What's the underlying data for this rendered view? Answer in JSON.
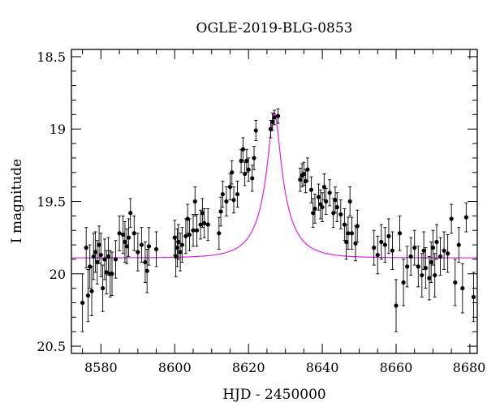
{
  "chart_data": {
    "type": "scatter",
    "title": "OGLE-2019-BLG-0853",
    "xlabel": "HJD - 2450000",
    "ylabel": "I magnitude",
    "xlim": [
      8572,
      8682
    ],
    "ylim": [
      20.55,
      18.45
    ],
    "y_inverted": true,
    "x_ticks": [
      8580,
      8600,
      8620,
      8640,
      8660,
      8680
    ],
    "y_ticks": [
      18.5,
      19,
      19.5,
      20,
      20.5
    ],
    "x_tick_labels": [
      "8580",
      "8600",
      "8620",
      "8640",
      "8660",
      "8680"
    ],
    "y_tick_labels": [
      "18.5",
      "19",
      "19.5",
      "20",
      "20.5"
    ],
    "colors": {
      "points": "#000000",
      "model": "#e020e0",
      "axes": "#000000"
    },
    "model": {
      "name": "",
      "kind": "point-lens model curve",
      "parameters": {
        "t0": 8627.0,
        "u0": 0.18,
        "tE": 8.0,
        "baseline_mag": 19.89,
        "fs": 0.33
      }
    },
    "points": [
      [
        8575.0,
        20.2,
        0.2
      ],
      [
        8576.0,
        19.82,
        0.14
      ],
      [
        8576.5,
        20.15,
        0.18
      ],
      [
        8577.0,
        19.95,
        0.15
      ],
      [
        8577.5,
        20.12,
        0.17
      ],
      [
        8578.0,
        19.88,
        0.16
      ],
      [
        8578.5,
        19.85,
        0.14
      ],
      [
        8579.0,
        19.92,
        0.15
      ],
      [
        8579.5,
        19.8,
        0.13
      ],
      [
        8580.0,
        19.87,
        0.15
      ],
      [
        8580.5,
        20.1,
        0.16
      ],
      [
        8581.0,
        19.9,
        0.14
      ],
      [
        8581.5,
        19.99,
        0.15
      ],
      [
        8582.0,
        19.88,
        0.13
      ],
      [
        8582.5,
        20.0,
        0.16
      ],
      [
        8583.0,
        20.0,
        0.15
      ],
      [
        8584.0,
        19.9,
        0.13
      ],
      [
        8585.0,
        19.72,
        0.12
      ],
      [
        8586.0,
        19.73,
        0.13
      ],
      [
        8586.5,
        19.78,
        0.14
      ],
      [
        8587.0,
        19.81,
        0.12
      ],
      [
        8587.5,
        19.75,
        0.13
      ],
      [
        8588.0,
        19.58,
        0.1
      ],
      [
        8589.0,
        19.72,
        0.12
      ],
      [
        8590.0,
        19.85,
        0.13
      ],
      [
        8591.0,
        19.8,
        0.12
      ],
      [
        8592.0,
        19.92,
        0.14
      ],
      [
        8592.5,
        19.98,
        0.15
      ],
      [
        8593.0,
        19.81,
        0.13
      ],
      [
        8595.0,
        19.83,
        0.12
      ],
      [
        8600.0,
        19.75,
        0.12
      ],
      [
        8600.3,
        19.88,
        0.14
      ],
      [
        8600.7,
        19.82,
        0.13
      ],
      [
        8601.0,
        19.78,
        0.12
      ],
      [
        8601.5,
        19.85,
        0.13
      ],
      [
        8602.0,
        19.8,
        0.12
      ],
      [
        8603.0,
        19.74,
        0.12
      ],
      [
        8603.5,
        19.62,
        0.1
      ],
      [
        8604.0,
        19.73,
        0.11
      ],
      [
        8605.0,
        19.7,
        0.11
      ],
      [
        8605.5,
        19.5,
        0.1
      ],
      [
        8606.0,
        19.7,
        0.11
      ],
      [
        8607.0,
        19.66,
        0.1
      ],
      [
        8607.5,
        19.58,
        0.1
      ],
      [
        8608.0,
        19.65,
        0.1
      ],
      [
        8609.0,
        19.66,
        0.11
      ],
      [
        8612.0,
        19.72,
        0.11
      ],
      [
        8612.5,
        19.57,
        0.1
      ],
      [
        8613.0,
        19.45,
        0.09
      ],
      [
        8614.0,
        19.5,
        0.1
      ],
      [
        8615.0,
        19.4,
        0.09
      ],
      [
        8615.5,
        19.3,
        0.08
      ],
      [
        8616.0,
        19.49,
        0.09
      ],
      [
        8617.0,
        19.45,
        0.09
      ],
      [
        8618.0,
        19.22,
        0.08
      ],
      [
        8618.5,
        19.14,
        0.08
      ],
      [
        8619.0,
        19.31,
        0.08
      ],
      [
        8619.5,
        19.22,
        0.08
      ],
      [
        8620.0,
        19.28,
        0.08
      ],
      [
        8621.0,
        19.34,
        0.09
      ],
      [
        8621.5,
        19.2,
        0.08
      ],
      [
        8622.0,
        19.01,
        0.07
      ],
      [
        8626.0,
        19.0,
        0.06
      ],
      [
        8626.5,
        18.95,
        0.06
      ],
      [
        8627.0,
        18.92,
        0.05
      ],
      [
        8628.0,
        18.91,
        0.05
      ],
      [
        8634.0,
        19.35,
        0.08
      ],
      [
        8634.5,
        19.32,
        0.08
      ],
      [
        8635.0,
        19.31,
        0.08
      ],
      [
        8635.5,
        19.36,
        0.08
      ],
      [
        8636.0,
        19.28,
        0.08
      ],
      [
        8637.0,
        19.42,
        0.09
      ],
      [
        8637.5,
        19.58,
        0.1
      ],
      [
        8638.0,
        19.55,
        0.1
      ],
      [
        8639.0,
        19.47,
        0.09
      ],
      [
        8639.5,
        19.52,
        0.1
      ],
      [
        8640.0,
        19.54,
        0.1
      ],
      [
        8640.5,
        19.4,
        0.09
      ],
      [
        8641.0,
        19.5,
        0.09
      ],
      [
        8642.0,
        19.44,
        0.09
      ],
      [
        8643.0,
        19.58,
        0.1
      ],
      [
        8643.5,
        19.49,
        0.09
      ],
      [
        8644.0,
        19.54,
        0.1
      ],
      [
        8645.0,
        19.59,
        0.1
      ],
      [
        8646.0,
        19.66,
        0.11
      ],
      [
        8646.5,
        19.78,
        0.12
      ],
      [
        8647.0,
        19.72,
        0.11
      ],
      [
        8647.5,
        19.5,
        0.1
      ],
      [
        8648.0,
        19.72,
        0.11
      ],
      [
        8649.0,
        19.79,
        0.12
      ],
      [
        8649.5,
        19.67,
        0.11
      ],
      [
        8654.0,
        19.82,
        0.12
      ],
      [
        8655.0,
        19.87,
        0.13
      ],
      [
        8656.0,
        19.78,
        0.12
      ],
      [
        8657.0,
        19.8,
        0.12
      ],
      [
        8658.0,
        19.74,
        0.12
      ],
      [
        8659.0,
        19.84,
        0.13
      ],
      [
        8660.0,
        20.22,
        0.18
      ],
      [
        8661.0,
        19.72,
        0.12
      ],
      [
        8662.0,
        20.06,
        0.16
      ],
      [
        8663.0,
        19.95,
        0.14
      ],
      [
        8664.0,
        19.88,
        0.13
      ],
      [
        8665.0,
        19.82,
        0.12
      ],
      [
        8666.0,
        19.95,
        0.14
      ],
      [
        8667.0,
        20.01,
        0.15
      ],
      [
        8667.5,
        19.84,
        0.13
      ],
      [
        8668.0,
        19.96,
        0.14
      ],
      [
        8669.0,
        20.03,
        0.15
      ],
      [
        8669.5,
        19.92,
        0.14
      ],
      [
        8670.0,
        19.82,
        0.12
      ],
      [
        8670.5,
        20.01,
        0.15
      ],
      [
        8671.0,
        19.78,
        0.12
      ],
      [
        8672.0,
        19.88,
        0.13
      ],
      [
        8673.0,
        19.84,
        0.13
      ],
      [
        8674.0,
        19.86,
        0.13
      ],
      [
        8675.0,
        19.62,
        0.1
      ],
      [
        8676.0,
        20.06,
        0.16
      ],
      [
        8677.0,
        19.8,
        0.12
      ],
      [
        8678.0,
        20.1,
        0.17
      ],
      [
        8679.0,
        19.61,
        0.1
      ],
      [
        8681.0,
        20.16,
        0.17
      ]
    ]
  }
}
